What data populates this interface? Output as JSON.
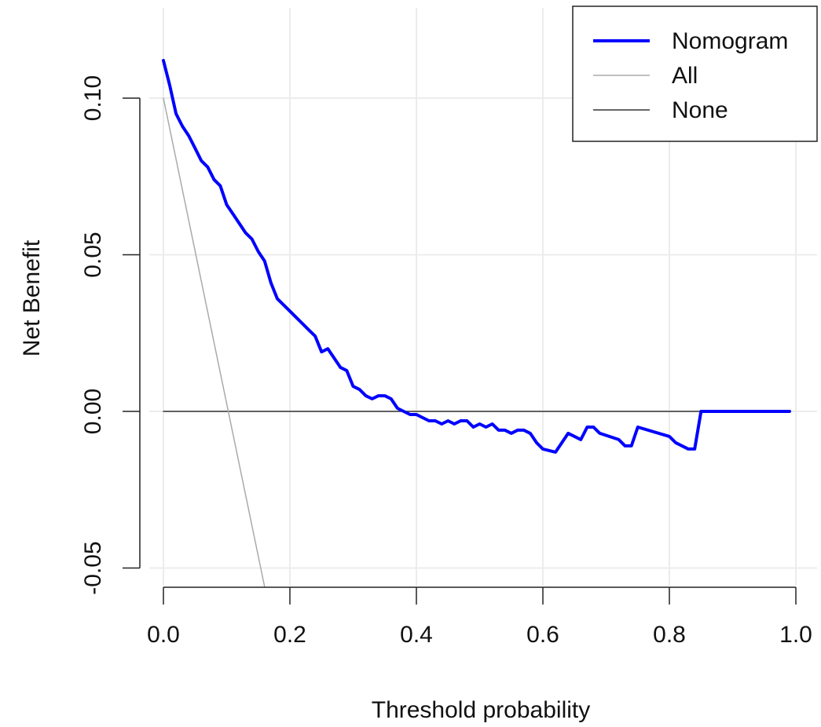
{
  "chart_data": {
    "type": "line",
    "title": "",
    "xlabel": "Threshold probability",
    "ylabel": "Net Benefit",
    "xlim": [
      0.0,
      1.0
    ],
    "ylim": [
      -0.05,
      0.1
    ],
    "x_ticks": [
      "0.0",
      "0.2",
      "0.4",
      "0.6",
      "0.8",
      "1.0"
    ],
    "y_ticks": [
      "-0.05",
      "0.00",
      "0.05",
      "0.10"
    ],
    "grid": true,
    "legend_position": "top-right",
    "series": [
      {
        "name": "Nomogram",
        "color": "#0000ff",
        "points": [
          [
            0.0,
            0.112
          ],
          [
            0.01,
            0.104
          ],
          [
            0.02,
            0.095
          ],
          [
            0.03,
            0.091
          ],
          [
            0.04,
            0.088
          ],
          [
            0.05,
            0.084
          ],
          [
            0.06,
            0.08
          ],
          [
            0.07,
            0.078
          ],
          [
            0.08,
            0.074
          ],
          [
            0.09,
            0.072
          ],
          [
            0.1,
            0.066
          ],
          [
            0.11,
            0.063
          ],
          [
            0.12,
            0.06
          ],
          [
            0.13,
            0.057
          ],
          [
            0.14,
            0.055
          ],
          [
            0.15,
            0.051
          ],
          [
            0.16,
            0.048
          ],
          [
            0.17,
            0.041
          ],
          [
            0.18,
            0.036
          ],
          [
            0.19,
            0.034
          ],
          [
            0.2,
            0.032
          ],
          [
            0.21,
            0.03
          ],
          [
            0.22,
            0.028
          ],
          [
            0.23,
            0.026
          ],
          [
            0.24,
            0.024
          ],
          [
            0.25,
            0.019
          ],
          [
            0.26,
            0.02
          ],
          [
            0.27,
            0.017
          ],
          [
            0.28,
            0.014
          ],
          [
            0.29,
            0.013
          ],
          [
            0.3,
            0.008
          ],
          [
            0.31,
            0.007
          ],
          [
            0.32,
            0.005
          ],
          [
            0.33,
            0.004
          ],
          [
            0.34,
            0.005
          ],
          [
            0.35,
            0.005
          ],
          [
            0.36,
            0.004
          ],
          [
            0.37,
            0.001
          ],
          [
            0.38,
            0.0
          ],
          [
            0.39,
            -0.001
          ],
          [
            0.4,
            -0.001
          ],
          [
            0.41,
            -0.002
          ],
          [
            0.42,
            -0.003
          ],
          [
            0.43,
            -0.003
          ],
          [
            0.44,
            -0.004
          ],
          [
            0.45,
            -0.003
          ],
          [
            0.46,
            -0.004
          ],
          [
            0.47,
            -0.003
          ],
          [
            0.48,
            -0.003
          ],
          [
            0.49,
            -0.005
          ],
          [
            0.5,
            -0.004
          ],
          [
            0.51,
            -0.005
          ],
          [
            0.52,
            -0.004
          ],
          [
            0.53,
            -0.006
          ],
          [
            0.54,
            -0.006
          ],
          [
            0.55,
            -0.007
          ],
          [
            0.56,
            -0.006
          ],
          [
            0.57,
            -0.006
          ],
          [
            0.58,
            -0.007
          ],
          [
            0.59,
            -0.01
          ],
          [
            0.6,
            -0.012
          ],
          [
            0.62,
            -0.013
          ],
          [
            0.64,
            -0.007
          ],
          [
            0.66,
            -0.009
          ],
          [
            0.67,
            -0.005
          ],
          [
            0.68,
            -0.005
          ],
          [
            0.69,
            -0.007
          ],
          [
            0.72,
            -0.009
          ],
          [
            0.73,
            -0.011
          ],
          [
            0.74,
            -0.011
          ],
          [
            0.75,
            -0.005
          ],
          [
            0.8,
            -0.008
          ],
          [
            0.81,
            -0.01
          ],
          [
            0.82,
            -0.011
          ],
          [
            0.83,
            -0.012
          ],
          [
            0.84,
            -0.012
          ],
          [
            0.85,
            0.0
          ],
          [
            0.99,
            0.0
          ]
        ]
      },
      {
        "name": "All",
        "color": "#aaaaaa",
        "points": [
          [
            0.0,
            0.1
          ],
          [
            0.16,
            -0.056
          ]
        ]
      },
      {
        "name": "None",
        "color": "#333333",
        "points": [
          [
            0.0,
            0.0
          ],
          [
            0.99,
            0.0
          ]
        ]
      }
    ]
  }
}
